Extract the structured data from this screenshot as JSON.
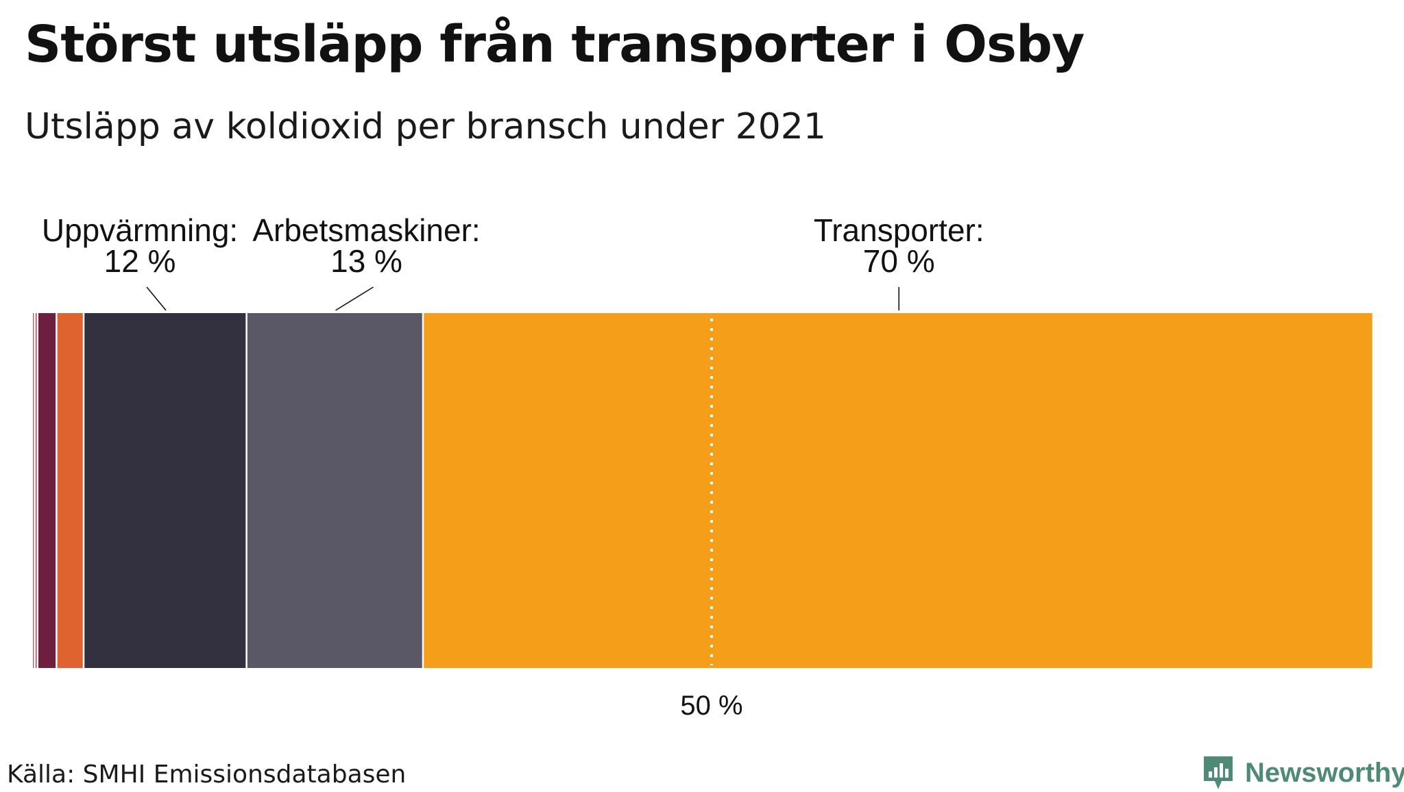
{
  "title": "Störst utsläpp från transporter i Osby",
  "subtitle": "Utsläpp av koldioxid per bransch under 2021",
  "source": "Källa: SMHI Emissionsdatabasen",
  "brand": {
    "name": "Newsworthy",
    "icon": "newsworthy-logo-icon"
  },
  "chart_data": {
    "type": "bar",
    "orientation": "stacked-horizontal-100-percent",
    "title": "Störst utsläpp från transporter i Osby",
    "subtitle": "Utsläpp av koldioxid per bransch under 2021",
    "unit": "%",
    "segments": [
      {
        "name": "",
        "value": 0.2,
        "color": "#b5616a",
        "label": "",
        "label_value": ""
      },
      {
        "name": "",
        "value": 0.2,
        "color": "#a73a55",
        "label": "",
        "label_value": ""
      },
      {
        "name": "",
        "value": 1.4,
        "color": "#6e1f3f",
        "label": "",
        "label_value": ""
      },
      {
        "name": "",
        "value": 2.0,
        "color": "#e0622e",
        "label": "",
        "label_value": ""
      },
      {
        "name": "Uppvärmning",
        "value": 12,
        "color": "#33313f",
        "label": "Uppvärmning:",
        "label_value": "12 %"
      },
      {
        "name": "Arbetsmaskiner",
        "value": 13,
        "color": "#5a5866",
        "label": "Arbetsmaskiner:",
        "label_value": "13 %"
      },
      {
        "name": "Transporter",
        "value": 70,
        "color": "#f59e19",
        "label": "Transporter:",
        "label_value": "70 %"
      }
    ],
    "reference_line": {
      "value": 50,
      "label": "50 %"
    },
    "xlim": [
      0,
      100
    ]
  }
}
